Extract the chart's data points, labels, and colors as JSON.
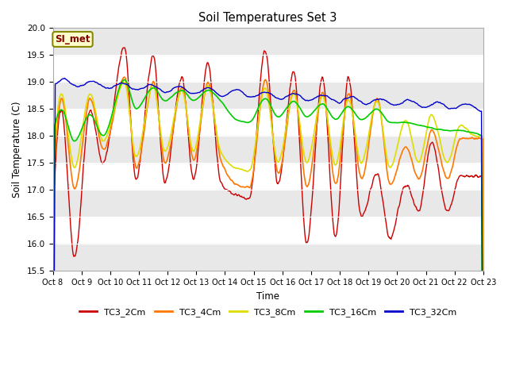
{
  "title": "Soil Temperatures Set 3",
  "xlabel": "Time",
  "ylabel": "Soil Temperature (C)",
  "ylim": [
    15.5,
    20.0
  ],
  "yticks": [
    15.5,
    16.0,
    16.5,
    17.0,
    17.5,
    18.0,
    18.5,
    19.0,
    19.5,
    20.0
  ],
  "xtick_labels": [
    "Oct 8",
    "Oct 9",
    "Oct 10",
    "Oct 11",
    "Oct 12",
    "Oct 13",
    "Oct 14",
    "Oct 15",
    "Oct 16",
    "Oct 17",
    "Oct 18",
    "Oct 19",
    "Oct 20",
    "Oct 21",
    "Oct 22",
    "Oct 23"
  ],
  "series_colors": {
    "TC3_2Cm": "#cc0000",
    "TC3_4Cm": "#ff7700",
    "TC3_8Cm": "#dddd00",
    "TC3_16Cm": "#00cc00",
    "TC3_32Cm": "#0000cc"
  },
  "legend_labels": [
    "TC3_2Cm",
    "TC3_4Cm",
    "TC3_8Cm",
    "TC3_16Cm",
    "TC3_32Cm"
  ],
  "si_met_label": "SI_met",
  "si_met_bg": "#ffffcc",
  "si_met_text_color": "#880000",
  "si_met_border_color": "#888800",
  "background_color": "#ffffff",
  "plot_bg_color": "#ffffff",
  "band_color_dark": "#e8e8e8",
  "num_points": 720,
  "days": 15
}
